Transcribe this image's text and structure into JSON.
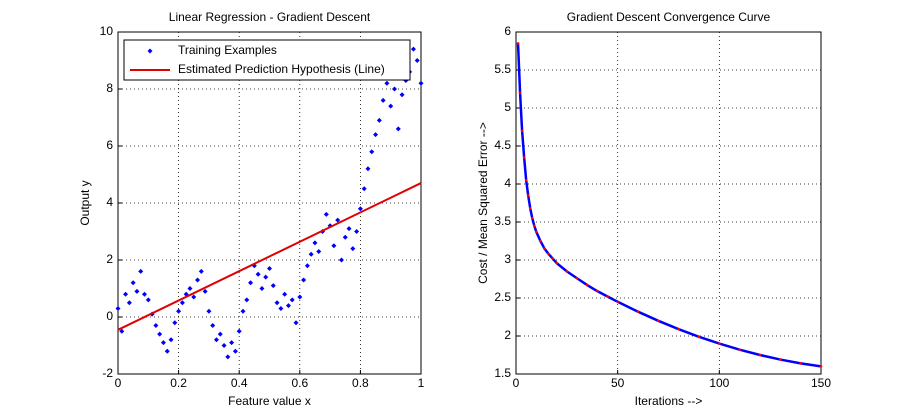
{
  "chart_data": [
    {
      "type": "scatter",
      "title": "Linear Regression - Gradient Descent",
      "x_label": "Feature value x",
      "y_label": "Output y",
      "xlim": [
        0,
        1
      ],
      "ylim": [
        -2,
        10
      ],
      "xticks": [
        0,
        0.2,
        0.4,
        0.6,
        0.8,
        1
      ],
      "yticks": [
        -2,
        0,
        2,
        4,
        6,
        8,
        10
      ],
      "grid": true,
      "legend": "upper left",
      "series": [
        {
          "name": "Training Examples",
          "style": "markers",
          "color": "#0000ff",
          "x": [
            0,
            0.0125,
            0.025,
            0.0375,
            0.05,
            0.0625,
            0.075,
            0.0875,
            0.1,
            0.1125,
            0.125,
            0.1375,
            0.15,
            0.1625,
            0.175,
            0.1875,
            0.2,
            0.2125,
            0.225,
            0.2375,
            0.25,
            0.2625,
            0.275,
            0.2875,
            0.3,
            0.3125,
            0.325,
            0.3375,
            0.35,
            0.3625,
            0.375,
            0.3875,
            0.4,
            0.4125,
            0.425,
            0.4375,
            0.45,
            0.4625,
            0.475,
            0.4875,
            0.5,
            0.5125,
            0.525,
            0.5375,
            0.55,
            0.5625,
            0.575,
            0.5875,
            0.6,
            0.6125,
            0.625,
            0.6375,
            0.65,
            0.6625,
            0.675,
            0.6875,
            0.7,
            0.7125,
            0.725,
            0.7375,
            0.75,
            0.7625,
            0.775,
            0.7875,
            0.8,
            0.8125,
            0.825,
            0.8375,
            0.85,
            0.8625,
            0.875,
            0.8875,
            0.9,
            0.9125,
            0.925,
            0.9375,
            0.95,
            0.9625,
            0.975,
            0.9875,
            1
          ],
          "values": [
            0.3,
            -0.5,
            0.8,
            0.5,
            1.2,
            0.9,
            1.6,
            0.8,
            0.6,
            0.1,
            -0.3,
            -0.6,
            -0.9,
            -1.2,
            -0.8,
            -0.2,
            0.2,
            0.5,
            0.8,
            1.0,
            0.7,
            1.3,
            1.6,
            0.9,
            0.2,
            -0.3,
            -0.8,
            -0.6,
            -1.0,
            -1.4,
            -0.9,
            -1.2,
            -0.5,
            0.2,
            0.6,
            1.2,
            1.8,
            1.5,
            1.0,
            1.4,
            1.7,
            1.1,
            0.5,
            0.3,
            0.8,
            0.4,
            0.6,
            -0.2,
            0.7,
            1.3,
            1.8,
            2.2,
            2.6,
            2.3,
            3.0,
            3.6,
            3.2,
            2.5,
            3.4,
            2.0,
            2.8,
            3.1,
            2.4,
            3.0,
            3.8,
            4.5,
            5.2,
            5.8,
            6.4,
            6.9,
            7.6,
            8.2,
            7.4,
            8.0,
            6.6,
            7.8,
            8.3,
            8.6,
            9.4,
            9.0,
            8.2
          ]
        },
        {
          "name": "Estimated Prediction Hypothesis (Line)",
          "style": "line",
          "color": "#e00000",
          "x": [
            0,
            1
          ],
          "values": [
            -0.45,
            4.7
          ]
        }
      ]
    },
    {
      "type": "line",
      "title": "Gradient Descent Convergence Curve",
      "x_label": "Iterations -->",
      "y_label": "Cost / Mean Squared Error -->",
      "xlim": [
        0,
        150
      ],
      "ylim": [
        1.5,
        6
      ],
      "xticks": [
        0,
        50,
        100,
        150
      ],
      "yticks": [
        1.5,
        2,
        2.5,
        3,
        3.5,
        4,
        4.5,
        5,
        5.5,
        6
      ],
      "grid": true,
      "color": "#0000ff",
      "marker_color": "#ff0000",
      "x": [
        1,
        2,
        3,
        4,
        5,
        6,
        7,
        8,
        9,
        10,
        12,
        14,
        16,
        18,
        20,
        25,
        30,
        35,
        40,
        45,
        50,
        60,
        70,
        80,
        90,
        100,
        110,
        120,
        130,
        140,
        150
      ],
      "values": [
        5.85,
        5.2,
        4.7,
        4.35,
        4.05,
        3.85,
        3.68,
        3.55,
        3.45,
        3.37,
        3.25,
        3.15,
        3.08,
        3.02,
        2.96,
        2.85,
        2.76,
        2.67,
        2.59,
        2.52,
        2.45,
        2.32,
        2.2,
        2.09,
        1.99,
        1.9,
        1.82,
        1.75,
        1.69,
        1.64,
        1.6
      ]
    }
  ]
}
